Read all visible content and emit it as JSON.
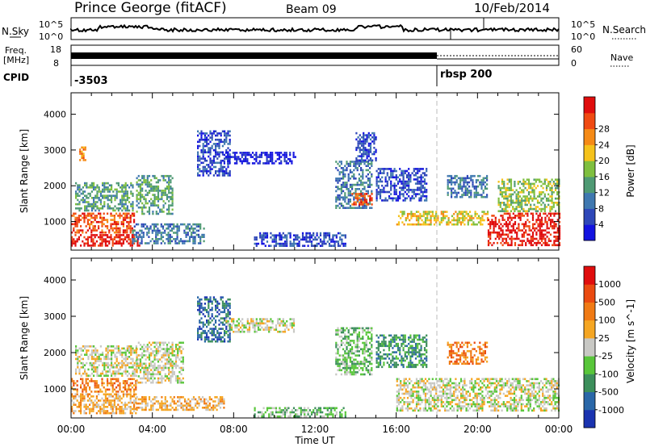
{
  "header": {
    "station": "Prince George (fitACF)",
    "beam": "Beam 09",
    "date": "10/Feb/2014"
  },
  "strips": {
    "nsky_label": "N.Sky",
    "nsky_top": "10^5",
    "nsky_bottom": "10^0",
    "nsearch_label": "N.Search",
    "freq_label": "Freq.",
    "freq_unit": "[MHz]",
    "freq_top": "18",
    "freq_bottom": "8",
    "nave_top": "60",
    "nave_bottom": "0",
    "nave_label": "Nave",
    "cpid_label": "CPID",
    "cpid_values": [
      {
        "value": "-3503",
        "start_hour": 0
      },
      {
        "value": "rbsp 200",
        "start_hour": 18
      }
    ]
  },
  "chart_data": [
    {
      "type": "heatmap",
      "name": "power",
      "ylabel": "Slant Range [km]",
      "xlim": [
        0,
        24
      ],
      "ylim": [
        200,
        4600
      ],
      "yticks": [
        1000,
        2000,
        3000,
        4000
      ],
      "colorbar": {
        "label": "Power [dB]",
        "ticks": [
          "4",
          "8",
          "12",
          "16",
          "20",
          "24",
          "28"
        ],
        "colors": [
          "#1313e0",
          "#2e47b8",
          "#3f78b0",
          "#4f9a74",
          "#7fbf3f",
          "#f5c21b",
          "#f58a16",
          "#f04a12",
          "#e00d0d"
        ]
      },
      "regions": [
        {
          "start": 0.0,
          "end": 3.1,
          "range": [
            700,
            1250
          ],
          "level": 7
        },
        {
          "start": 0.0,
          "end": 3.4,
          "range": [
            350,
            650
          ],
          "level": 8
        },
        {
          "start": 0.2,
          "end": 3.0,
          "range": [
            1300,
            2100
          ],
          "level": 3
        },
        {
          "start": 0.4,
          "end": 0.7,
          "range": [
            2700,
            3100
          ],
          "level": 6
        },
        {
          "start": 3.0,
          "end": 6.5,
          "range": [
            400,
            950
          ],
          "level": 2
        },
        {
          "start": 3.2,
          "end": 5.0,
          "range": [
            1200,
            2300
          ],
          "level": 3
        },
        {
          "start": 6.2,
          "end": 7.8,
          "range": [
            2300,
            3550
          ],
          "level": 1
        },
        {
          "start": 7.5,
          "end": 11.0,
          "range": [
            2600,
            2950
          ],
          "level": 0
        },
        {
          "start": 9.0,
          "end": 13.5,
          "range": [
            300,
            700
          ],
          "level": 1
        },
        {
          "start": 13.0,
          "end": 14.8,
          "range": [
            1400,
            2700
          ],
          "level": 2
        },
        {
          "start": 13.8,
          "end": 14.8,
          "range": [
            1500,
            1800
          ],
          "level": 7
        },
        {
          "start": 14.0,
          "end": 15.0,
          "range": [
            2700,
            3500
          ],
          "level": 1
        },
        {
          "start": 15.0,
          "end": 17.5,
          "range": [
            1600,
            2500
          ],
          "level": 1
        },
        {
          "start": 16.0,
          "end": 20.5,
          "range": [
            900,
            1300
          ],
          "level": 5
        },
        {
          "start": 18.5,
          "end": 20.5,
          "range": [
            1700,
            2300
          ],
          "level": 2
        },
        {
          "start": 20.5,
          "end": 24.0,
          "range": [
            350,
            1250
          ],
          "level": 8
        },
        {
          "start": 21.0,
          "end": 24.0,
          "range": [
            1300,
            2200
          ],
          "level": 4
        }
      ]
    },
    {
      "type": "heatmap",
      "name": "velocity",
      "ylabel": "Slant Range [km]",
      "xlabel": "Time UT",
      "xlim": [
        0,
        24
      ],
      "ylim": [
        200,
        4600
      ],
      "yticks": [
        1000,
        2000,
        3000,
        4000
      ],
      "xticks": [
        "00:00",
        "04:00",
        "08:00",
        "12:00",
        "16:00",
        "20:00",
        "00:00"
      ],
      "colorbar": {
        "label": "Velocity [m s^-1]",
        "ticks": [
          "1000",
          "500",
          "100",
          "25",
          "-25",
          "-100",
          "-500",
          "-1000"
        ],
        "colors": [
          "#1a33b0",
          "#2a67a8",
          "#3c8f5b",
          "#58c63a",
          "#c8c8c4",
          "#f5a623",
          "#f07a14",
          "#ea4a10",
          "#e00d0d"
        ]
      },
      "regions": [
        {
          "start": 0.0,
          "end": 3.2,
          "range": [
            900,
            1300
          ],
          "level": 6
        },
        {
          "start": 0.0,
          "end": 3.2,
          "range": [
            350,
            880
          ],
          "level": 5
        },
        {
          "start": 0.2,
          "end": 3.2,
          "range": [
            1350,
            2200
          ],
          "level": 4
        },
        {
          "start": 3.2,
          "end": 7.5,
          "range": [
            400,
            800
          ],
          "level": 5
        },
        {
          "start": 3.2,
          "end": 5.5,
          "range": [
            1200,
            2300
          ],
          "level": 4
        },
        {
          "start": 6.2,
          "end": 7.8,
          "range": [
            2300,
            3550
          ],
          "level": 1
        },
        {
          "start": 7.6,
          "end": 11.0,
          "range": [
            2600,
            2950
          ],
          "level": 4
        },
        {
          "start": 9.0,
          "end": 13.5,
          "range": [
            250,
            500
          ],
          "level": 3
        },
        {
          "start": 13.0,
          "end": 14.8,
          "range": [
            1400,
            2700
          ],
          "level": 3
        },
        {
          "start": 15.0,
          "end": 17.5,
          "range": [
            1600,
            2500
          ],
          "level": 2
        },
        {
          "start": 16.0,
          "end": 24.0,
          "range": [
            400,
            1300
          ],
          "level": 4
        },
        {
          "start": 18.5,
          "end": 20.5,
          "range": [
            1700,
            2300
          ],
          "level": 6
        }
      ]
    }
  ]
}
